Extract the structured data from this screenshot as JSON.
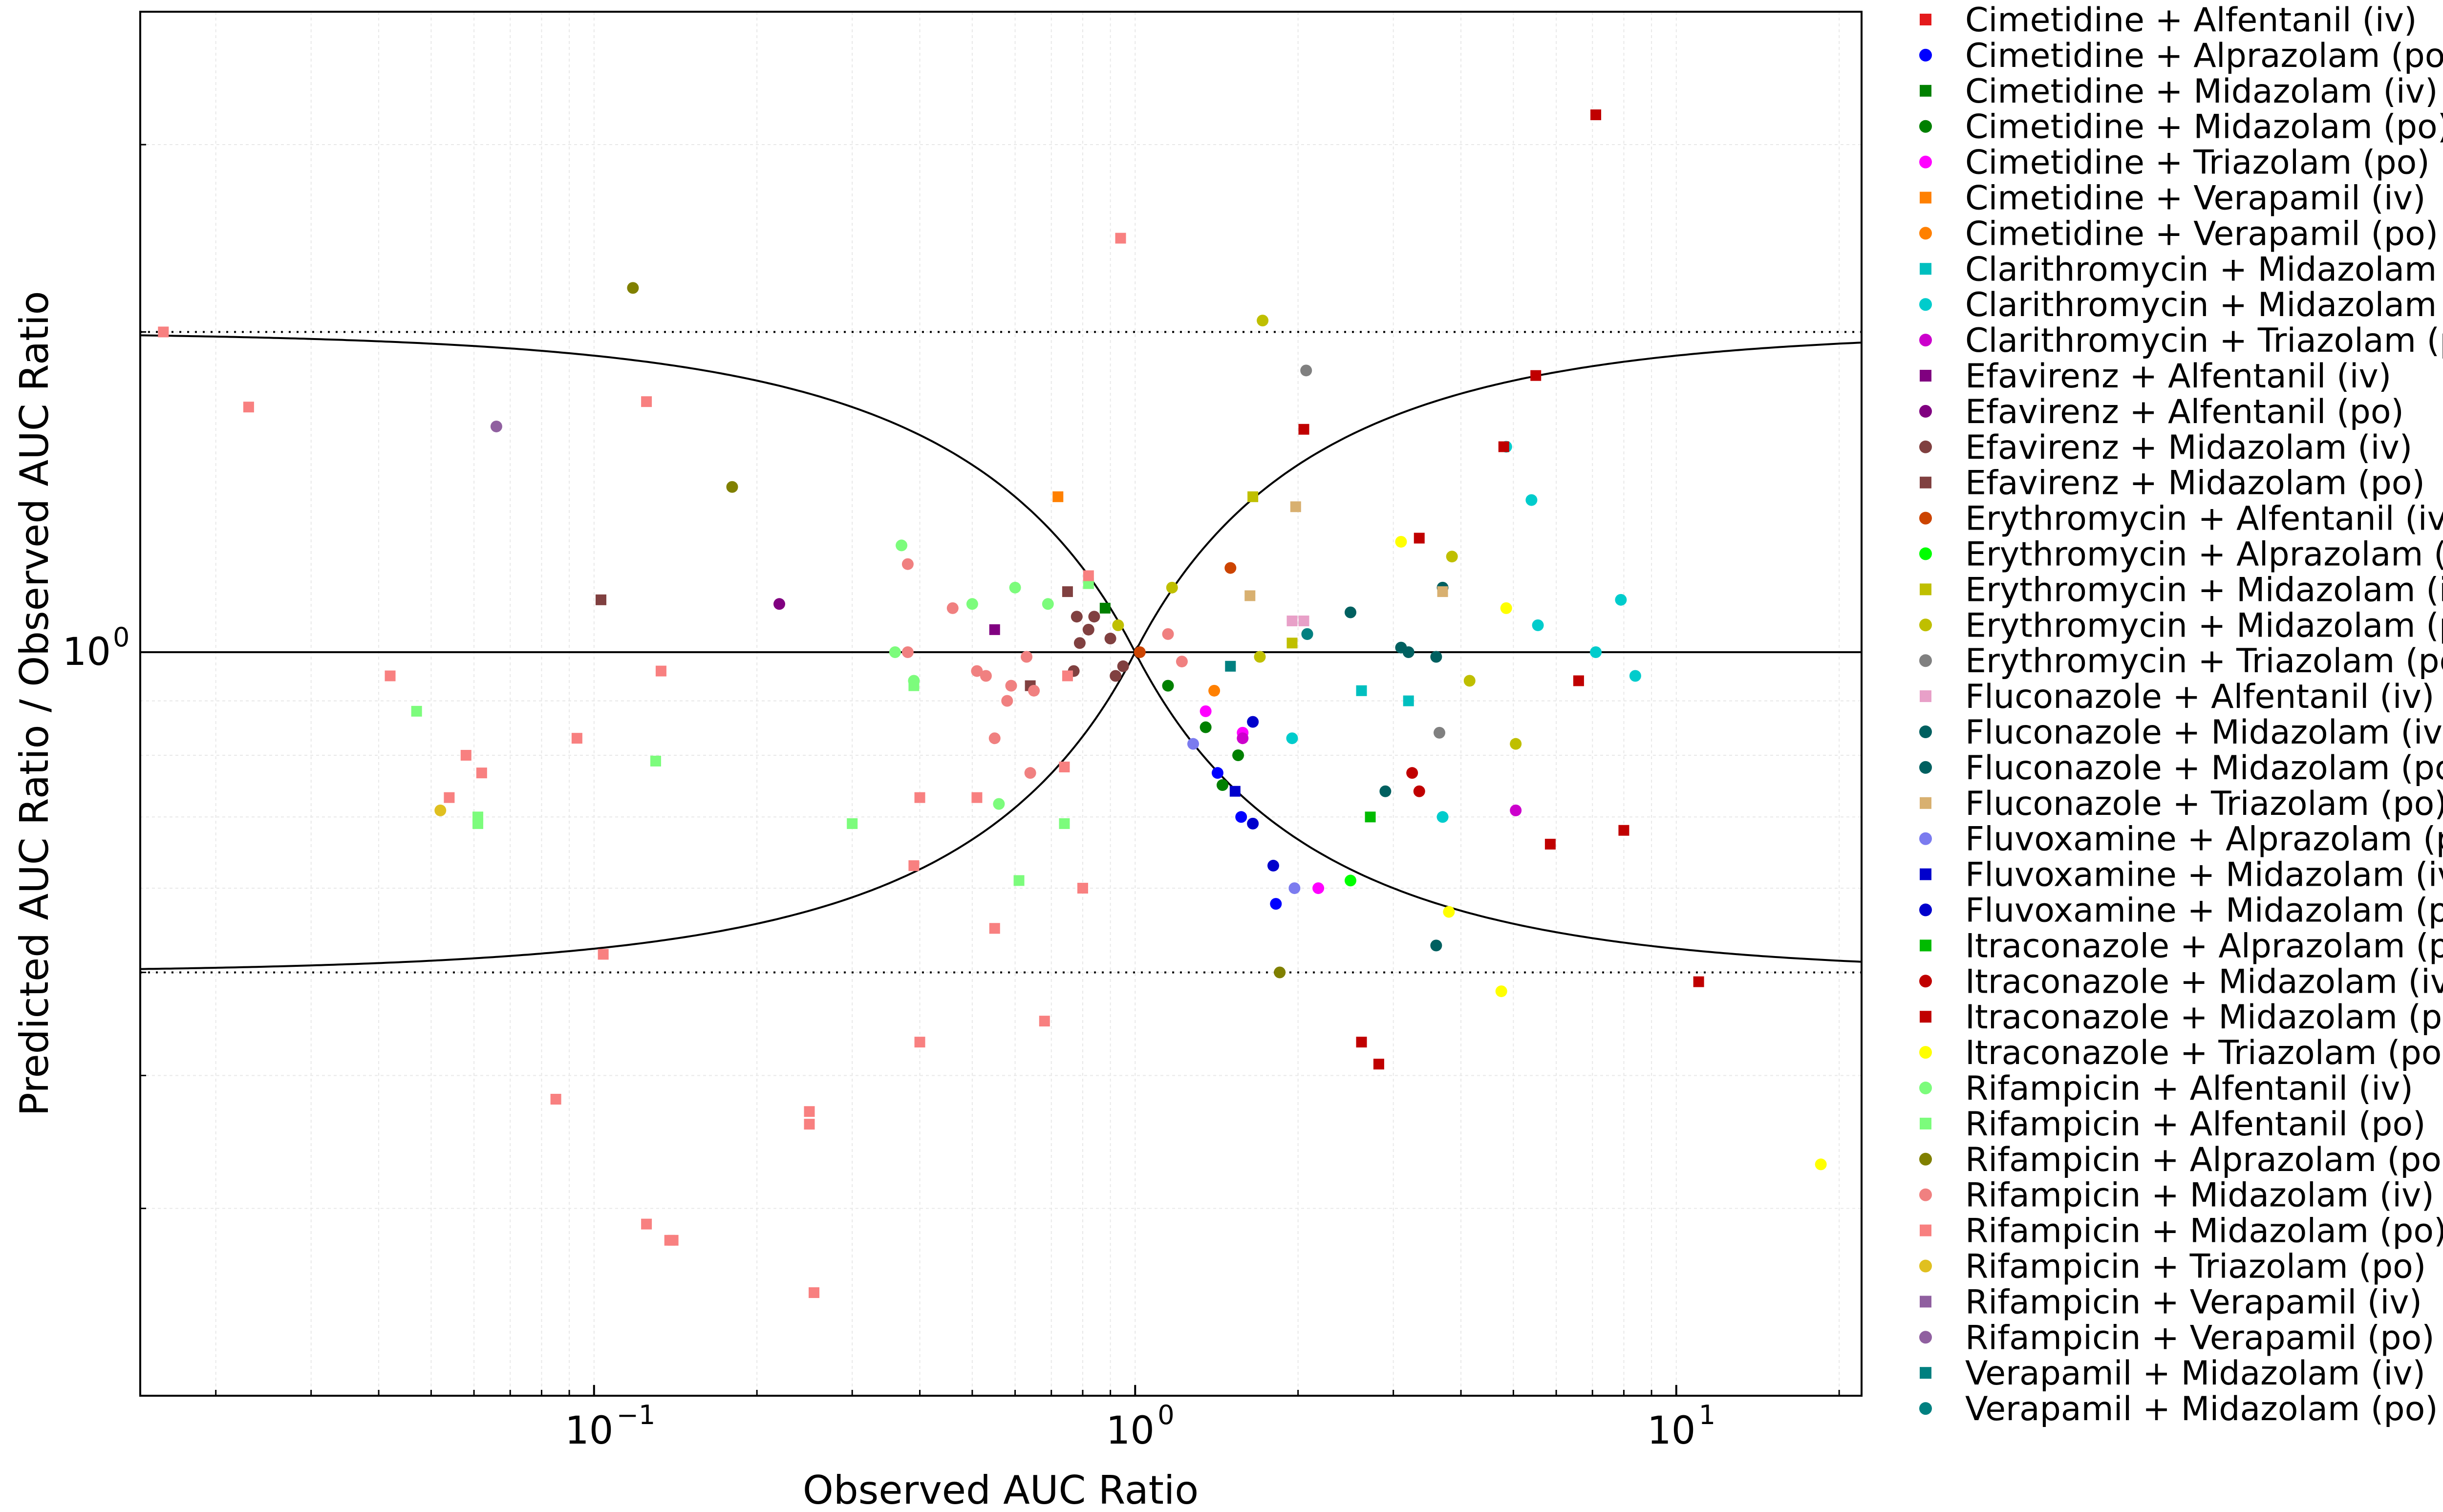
{
  "chart_data": {
    "type": "scatter",
    "title": "",
    "xlabel": "Observed AUC Ratio",
    "ylabel": "Predicted AUC Ratio / Observed AUC Ratio",
    "xscale": "log",
    "yscale": "log",
    "xlim": [
      0.0145,
      22.0
    ],
    "ylim": [
      0.2,
      4.0
    ],
    "x_ticks": [
      {
        "value": 0.1,
        "label": "10^-1"
      },
      {
        "value": 1,
        "label": "10^0"
      },
      {
        "value": 10,
        "label": "10^1"
      }
    ],
    "y_ticks": [
      {
        "value": 1,
        "label": "10^0"
      }
    ],
    "grid": true,
    "legend_position": "right",
    "reference_lines": {
      "unity": 1.0,
      "dotted_bounds": [
        0.5,
        2.0
      ],
      "guest_limits_curves": true
    },
    "series": [
      {
        "name": "Cimetidine + Alfentanil (iv)",
        "color": "#e41a1c",
        "marker": "square",
        "points": []
      },
      {
        "name": "Cimetidine + Alprazolam (po)",
        "color": "#0000ff",
        "marker": "circle",
        "points": [
          [
            1.42,
            0.77
          ],
          [
            1.57,
            0.7
          ],
          [
            1.82,
            0.58
          ]
        ]
      },
      {
        "name": "Cimetidine + Midazolam (iv)",
        "color": "#008000",
        "marker": "square",
        "points": [
          [
            0.88,
            1.1
          ]
        ]
      },
      {
        "name": "Cimetidine + Midazolam (po)",
        "color": "#008000",
        "marker": "circle",
        "points": [
          [
            1.15,
            0.93
          ],
          [
            1.35,
            0.85
          ],
          [
            1.55,
            0.8
          ],
          [
            1.45,
            0.75
          ]
        ]
      },
      {
        "name": "Cimetidine + Triazolam (po)",
        "color": "#ff00ff",
        "marker": "circle",
        "points": [
          [
            1.58,
            0.84
          ],
          [
            1.35,
            0.88
          ],
          [
            2.18,
            0.6
          ]
        ]
      },
      {
        "name": "Cimetidine + Verapamil (iv)",
        "color": "#ff8000",
        "marker": "square",
        "points": [
          [
            0.72,
            1.4
          ]
        ]
      },
      {
        "name": "Cimetidine + Verapamil (po)",
        "color": "#ff8000",
        "marker": "circle",
        "points": [
          [
            1.4,
            0.92
          ]
        ]
      },
      {
        "name": "Clarithromycin + Midazolam (iv)",
        "color": "#00bfbf",
        "marker": "square",
        "points": [
          [
            2.62,
            0.92
          ],
          [
            3.2,
            0.9
          ]
        ]
      },
      {
        "name": "Clarithromycin + Midazolam (po)",
        "color": "#00cccc",
        "marker": "circle",
        "points": [
          [
            4.85,
            1.56
          ],
          [
            5.4,
            1.39
          ],
          [
            5.55,
            1.06
          ],
          [
            7.1,
            1.0
          ],
          [
            7.9,
            1.12
          ],
          [
            8.4,
            0.95
          ],
          [
            1.95,
            0.83
          ],
          [
            3.7,
            0.7
          ]
        ]
      },
      {
        "name": "Clarithromycin + Triazolam (po)",
        "color": "#cc00cc",
        "marker": "circle",
        "points": [
          [
            1.58,
            0.83
          ],
          [
            5.05,
            0.71
          ]
        ]
      },
      {
        "name": "Efavirenz + Alfentanil (iv)",
        "color": "#800080",
        "marker": "square",
        "points": [
          [
            0.55,
            1.05
          ]
        ]
      },
      {
        "name": "Efavirenz + Alfentanil (po)",
        "color": "#800080",
        "marker": "circle",
        "points": [
          [
            0.22,
            1.11
          ]
        ]
      },
      {
        "name": "Efavirenz + Midazolam (iv)",
        "color": "#804040",
        "marker": "circle",
        "points": [
          [
            0.78,
            1.08
          ],
          [
            0.82,
            1.05
          ],
          [
            0.84,
            1.08
          ],
          [
            0.79,
            1.02
          ],
          [
            0.9,
            1.03
          ],
          [
            0.95,
            0.97
          ],
          [
            0.92,
            0.95
          ],
          [
            0.77,
            0.96
          ]
        ]
      },
      {
        "name": "Efavirenz + Midazolam (po)",
        "color": "#804040",
        "marker": "square",
        "points": [
          [
            0.103,
            1.12
          ],
          [
            0.75,
            1.14
          ],
          [
            0.64,
            0.93
          ]
        ]
      },
      {
        "name": "Erythromycin + Alfentanil (iv)",
        "color": "#cc4400",
        "marker": "circle",
        "points": [
          [
            1.02,
            1.0
          ],
          [
            1.5,
            1.2
          ]
        ]
      },
      {
        "name": "Erythromycin + Alprazolam (po)",
        "color": "#00ff00",
        "marker": "circle",
        "points": [
          [
            2.5,
            0.61
          ]
        ]
      },
      {
        "name": "Erythromycin + Midazolam (iv)",
        "color": "#bfbf00",
        "marker": "square",
        "points": [
          [
            1.65,
            1.4
          ],
          [
            1.95,
            1.02
          ]
        ]
      },
      {
        "name": "Erythromycin + Midazolam (po)",
        "color": "#bfbf00",
        "marker": "circle",
        "points": [
          [
            1.72,
            2.05
          ],
          [
            3.85,
            1.23
          ],
          [
            1.17,
            1.15
          ],
          [
            1.7,
            0.99
          ],
          [
            4.15,
            0.94
          ],
          [
            5.05,
            0.82
          ],
          [
            0.93,
            1.06
          ]
        ]
      },
      {
        "name": "Erythromycin + Triazolam (po)",
        "color": "#808080",
        "marker": "circle",
        "points": [
          [
            2.07,
            1.84
          ],
          [
            3.65,
            0.84
          ]
        ]
      },
      {
        "name": "Fluconazole + Alfentanil (iv)",
        "color": "#e8a0c8",
        "marker": "square",
        "points": [
          [
            1.95,
            1.07
          ],
          [
            2.05,
            1.07
          ]
        ]
      },
      {
        "name": "Fluconazole + Midazolam (iv)",
        "color": "#006060",
        "marker": "circle",
        "points": [
          [
            2.5,
            1.09
          ],
          [
            3.2,
            1.0
          ],
          [
            3.6,
            0.99
          ],
          [
            3.7,
            1.15
          ],
          [
            2.9,
            0.74
          ],
          [
            3.6,
            0.53
          ]
        ]
      },
      {
        "name": "Fluconazole + Midazolam (po)",
        "color": "#006060",
        "marker": "circle",
        "points": [
          [
            2.08,
            1.04
          ],
          [
            3.1,
            1.01
          ]
        ]
      },
      {
        "name": "Fluconazole + Triazolam (po)",
        "color": "#d8b070",
        "marker": "square",
        "points": [
          [
            1.63,
            1.13
          ],
          [
            1.98,
            1.37
          ],
          [
            3.7,
            1.14
          ]
        ]
      },
      {
        "name": "Fluvoxamine + Alprazolam (po)",
        "color": "#7b7bef",
        "marker": "circle",
        "points": [
          [
            1.28,
            0.82
          ],
          [
            1.97,
            0.6
          ]
        ]
      },
      {
        "name": "Fluvoxamine + Midazolam (iv)",
        "color": "#0000cc",
        "marker": "square",
        "points": [
          [
            1.53,
            0.74
          ]
        ]
      },
      {
        "name": "Fluvoxamine + Midazolam (po)",
        "color": "#0000cc",
        "marker": "circle",
        "points": [
          [
            1.65,
            0.86
          ],
          [
            1.65,
            0.69
          ],
          [
            1.8,
            0.63
          ]
        ]
      },
      {
        "name": "Itraconazole + Alprazolam (po)",
        "color": "#00bb00",
        "marker": "square",
        "points": [
          [
            2.72,
            0.7
          ]
        ]
      },
      {
        "name": "Itraconazole + Midazolam (iv)",
        "color": "#c00000",
        "marker": "circle",
        "points": [
          [
            3.25,
            0.77
          ],
          [
            3.35,
            0.74
          ]
        ]
      },
      {
        "name": "Itraconazole + Midazolam (po)",
        "color": "#c00000",
        "marker": "square",
        "points": [
          [
            7.1,
            3.2
          ],
          [
            5.5,
            1.82
          ],
          [
            4.8,
            1.56
          ],
          [
            2.05,
            1.62
          ],
          [
            3.35,
            1.28
          ],
          [
            6.6,
            0.94
          ],
          [
            8.0,
            0.68
          ],
          [
            5.85,
            0.66
          ],
          [
            11.0,
            0.49
          ],
          [
            2.62,
            0.43
          ],
          [
            2.82,
            0.41
          ]
        ]
      },
      {
        "name": "Itraconazole + Triazolam (po)",
        "color": "#ffff00",
        "marker": "circle",
        "points": [
          [
            3.1,
            1.27
          ],
          [
            4.85,
            1.1
          ],
          [
            3.8,
            0.57
          ],
          [
            4.75,
            0.48
          ],
          [
            18.5,
            0.33
          ]
        ]
      },
      {
        "name": "Rifampicin + Alfentanil (iv)",
        "color": "#7cfc7c",
        "marker": "circle",
        "points": [
          [
            0.37,
            1.26
          ],
          [
            0.5,
            1.11
          ],
          [
            0.6,
            1.15
          ],
          [
            0.36,
            1.0
          ],
          [
            0.39,
            0.94
          ],
          [
            0.56,
            0.72
          ],
          [
            0.69,
            1.11
          ]
        ]
      },
      {
        "name": "Rifampicin + Alfentanil (po)",
        "color": "#7cfc7c",
        "marker": "square",
        "points": [
          [
            0.047,
            0.88
          ],
          [
            0.061,
            0.69
          ],
          [
            0.061,
            0.7
          ],
          [
            0.13,
            0.79
          ],
          [
            0.3,
            0.69
          ],
          [
            0.61,
            0.61
          ],
          [
            0.74,
            0.69
          ],
          [
            0.82,
            1.16
          ],
          [
            0.39,
            0.93
          ]
        ]
      },
      {
        "name": "Rifampicin + Alprazolam (po)",
        "color": "#808000",
        "marker": "circle",
        "points": [
          [
            0.118,
            2.2
          ],
          [
            0.18,
            1.43
          ],
          [
            1.85,
            0.5
          ]
        ]
      },
      {
        "name": "Rifampicin + Midazolam (iv)",
        "color": "#f08080",
        "marker": "circle",
        "points": [
          [
            0.38,
            1.21
          ],
          [
            0.46,
            1.1
          ],
          [
            0.51,
            0.96
          ],
          [
            0.53,
            0.95
          ],
          [
            0.59,
            0.93
          ],
          [
            0.58,
            0.9
          ],
          [
            0.63,
            0.99
          ],
          [
            0.64,
            0.77
          ],
          [
            0.38,
            1.0
          ],
          [
            0.65,
            0.92
          ],
          [
            1.15,
            1.04
          ],
          [
            1.22,
            0.98
          ],
          [
            0.55,
            0.83
          ]
        ]
      },
      {
        "name": "Rifampicin + Midazolam (po)",
        "color": "#f88080",
        "marker": "square",
        "points": [
          [
            0.016,
            2.0
          ],
          [
            0.023,
            1.7
          ],
          [
            0.042,
            0.95
          ],
          [
            0.054,
            0.73
          ],
          [
            0.058,
            0.8
          ],
          [
            0.062,
            0.77
          ],
          [
            0.093,
            0.83
          ],
          [
            0.104,
            0.52
          ],
          [
            0.125,
            1.72
          ],
          [
            0.133,
            0.96
          ],
          [
            0.085,
            0.38
          ],
          [
            0.125,
            0.29
          ],
          [
            0.138,
            0.28
          ],
          [
            0.14,
            0.28
          ],
          [
            0.25,
            0.37
          ],
          [
            0.25,
            0.36
          ],
          [
            0.255,
            0.25
          ],
          [
            0.4,
            0.73
          ],
          [
            0.39,
            0.63
          ],
          [
            0.4,
            0.43
          ],
          [
            0.51,
            0.73
          ],
          [
            0.55,
            0.55
          ],
          [
            0.68,
            0.45
          ],
          [
            0.74,
            0.78
          ],
          [
            0.8,
            0.6
          ],
          [
            0.94,
            2.45
          ],
          [
            0.82,
            1.18
          ],
          [
            0.75,
            0.95
          ]
        ]
      },
      {
        "name": "Rifampicin + Triazolam (po)",
        "color": "#e0c020",
        "marker": "circle",
        "points": [
          [
            0.052,
            0.71
          ]
        ]
      },
      {
        "name": "Rifampicin + Verapamil (iv)",
        "color": "#9060a0",
        "marker": "square",
        "points": []
      },
      {
        "name": "Rifampicin + Verapamil (po)",
        "color": "#9060a0",
        "marker": "circle",
        "points": [
          [
            0.066,
            1.63
          ]
        ]
      },
      {
        "name": "Verapamil + Midazolam (iv)",
        "color": "#008080",
        "marker": "square",
        "points": [
          [
            1.5,
            0.97
          ]
        ]
      },
      {
        "name": "Verapamil + Midazolam (po)",
        "color": "#008080",
        "marker": "circle",
        "points": [
          [
            2.08,
            1.04
          ]
        ]
      }
    ]
  }
}
